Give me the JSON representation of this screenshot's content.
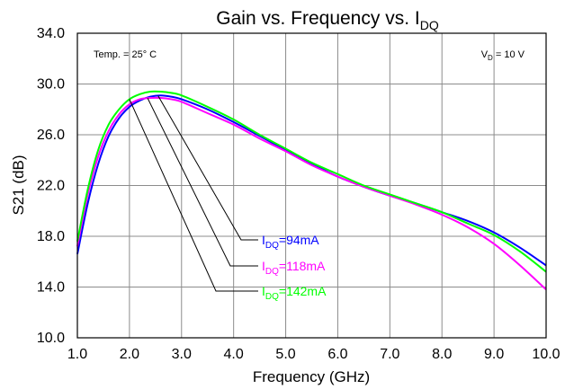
{
  "chart_data": {
    "type": "line",
    "title": "Gain vs. Frequency vs. I",
    "title_sub": "DQ",
    "xlabel": "Frequency (GHz)",
    "ylabel": "S21 (dB)",
    "xlim": [
      1.0,
      10.0
    ],
    "ylim": [
      10.0,
      34.0
    ],
    "x_ticks": [
      "1.0",
      "2.0",
      "3.0",
      "4.0",
      "5.0",
      "6.0",
      "7.0",
      "8.0",
      "9.0",
      "10.0"
    ],
    "y_ticks": [
      "10.0",
      "14.0",
      "18.0",
      "22.0",
      "26.0",
      "30.0",
      "34.0"
    ],
    "x_ticks_values": [
      1,
      2,
      3,
      4,
      5,
      6,
      7,
      8,
      9,
      10
    ],
    "y_ticks_values": [
      10,
      14,
      18,
      22,
      26,
      30,
      34
    ],
    "grid": true,
    "annotations": {
      "temp_label": "Temp. = 25° C",
      "vd_label_main": "V",
      "vd_label_sub": "D",
      "vd_label_rest": " = 10 V"
    },
    "series": [
      {
        "name": "94mA",
        "label_main": "I",
        "label_sub": "DQ",
        "label_rest": "=94mA",
        "color": "#0000ff",
        "x": [
          1.0,
          1.2,
          1.4,
          1.6,
          1.8,
          2.0,
          2.2,
          2.4,
          2.6,
          2.8,
          3.0,
          3.5,
          4.0,
          4.5,
          5.0,
          5.5,
          6.0,
          6.5,
          7.0,
          7.5,
          8.0,
          8.5,
          9.0,
          9.5,
          10.0
        ],
        "y": [
          16.6,
          20.6,
          23.7,
          25.9,
          27.3,
          28.2,
          28.7,
          29.0,
          29.1,
          29.0,
          28.8,
          28.0,
          27.0,
          25.9,
          24.8,
          23.7,
          22.7,
          21.9,
          21.2,
          20.6,
          19.9,
          19.2,
          18.3,
          17.1,
          15.7
        ]
      },
      {
        "name": "118mA",
        "label_main": "I",
        "label_sub": "DQ",
        "label_rest": "=118mA",
        "color": "#ff00ff",
        "x": [
          1.0,
          1.2,
          1.4,
          1.6,
          1.8,
          2.0,
          2.2,
          2.4,
          2.6,
          2.8,
          3.0,
          3.5,
          4.0,
          4.5,
          5.0,
          5.5,
          6.0,
          6.5,
          7.0,
          7.5,
          8.0,
          8.5,
          9.0,
          9.5,
          10.0
        ],
        "y": [
          17.2,
          21.3,
          24.3,
          26.3,
          27.6,
          28.4,
          28.8,
          28.9,
          28.9,
          28.8,
          28.6,
          27.7,
          26.8,
          25.7,
          24.7,
          23.6,
          22.7,
          21.9,
          21.2,
          20.5,
          19.7,
          18.7,
          17.4,
          15.7,
          13.8
        ]
      },
      {
        "name": "142mA",
        "label_main": "I",
        "label_sub": "DQ",
        "label_rest": "=142mA",
        "color": "#00ff00",
        "x": [
          1.0,
          1.2,
          1.4,
          1.6,
          1.8,
          2.0,
          2.2,
          2.4,
          2.6,
          2.8,
          3.0,
          3.5,
          4.0,
          4.5,
          5.0,
          5.5,
          6.0,
          6.5,
          7.0,
          7.5,
          8.0,
          8.5,
          9.0,
          9.5,
          10.0
        ],
        "y": [
          17.6,
          21.7,
          24.8,
          26.8,
          28.0,
          28.8,
          29.2,
          29.4,
          29.4,
          29.3,
          29.1,
          28.2,
          27.2,
          26.0,
          24.9,
          23.8,
          22.9,
          22.0,
          21.3,
          20.6,
          19.9,
          19.0,
          18.1,
          16.8,
          15.2
        ]
      }
    ]
  }
}
